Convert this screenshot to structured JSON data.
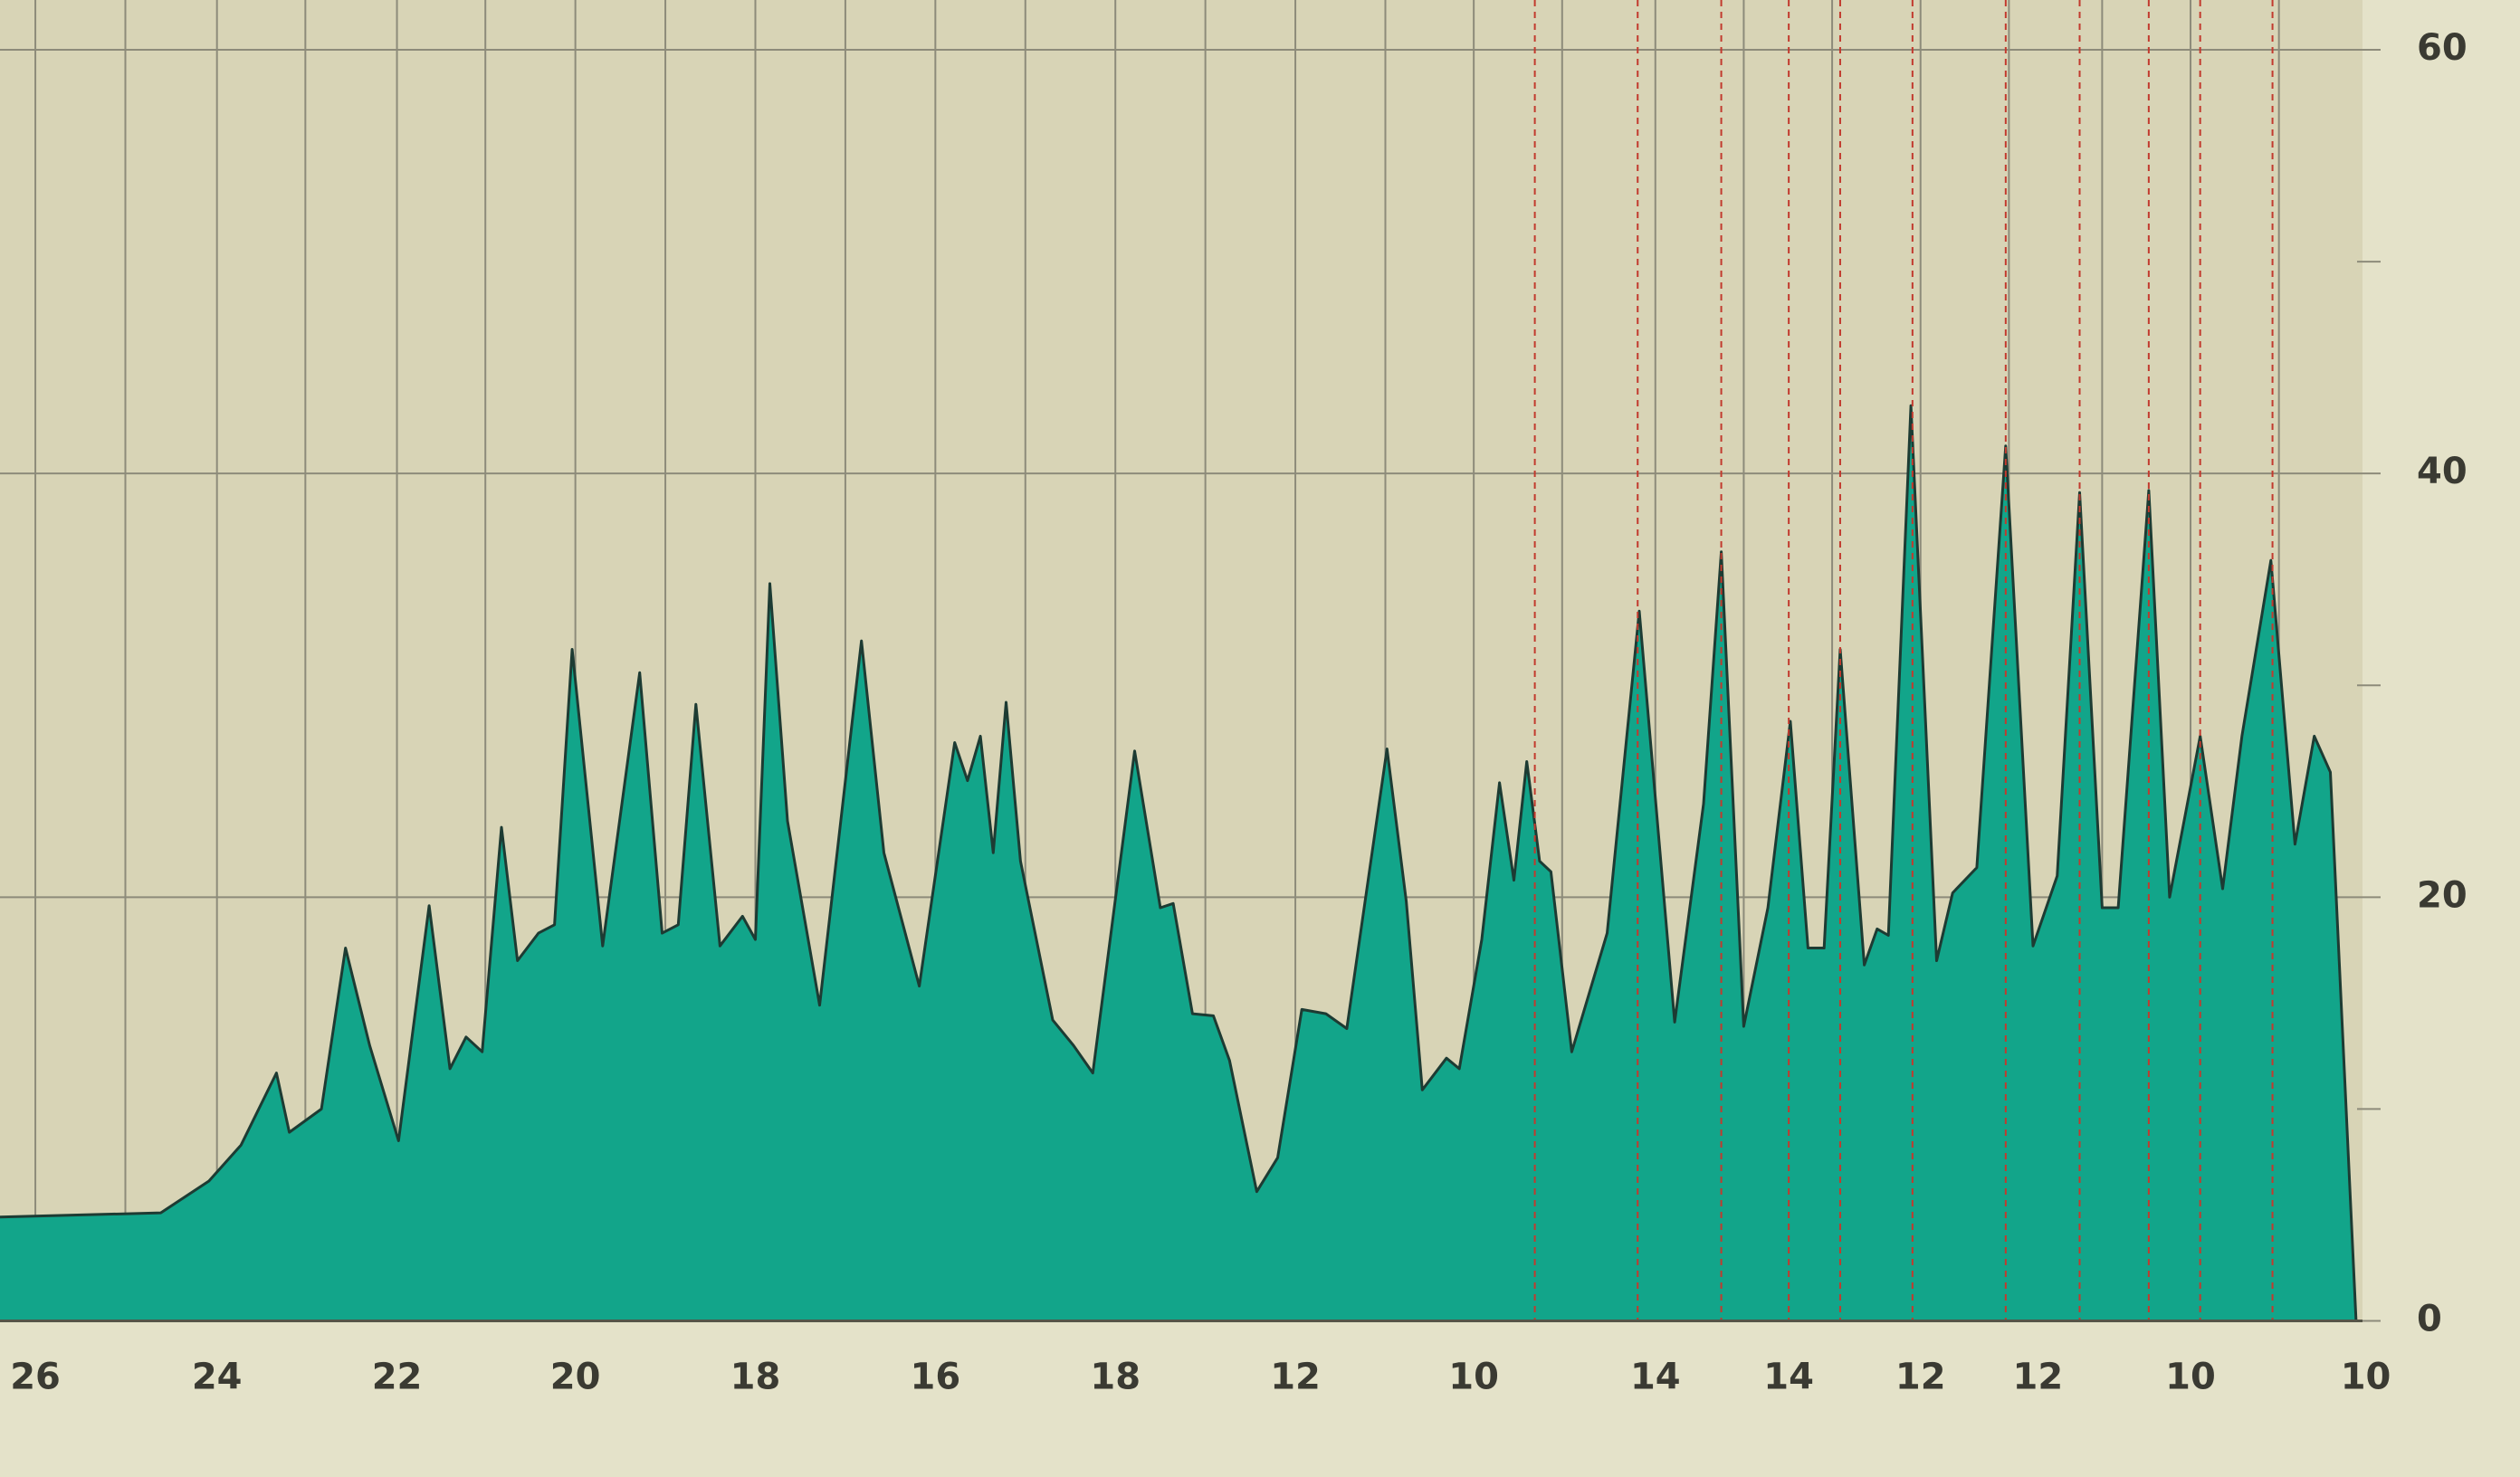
{
  "chart_data": {
    "type": "area",
    "color": "#12a58a",
    "line_color": "#1d3b33",
    "x": [
      0,
      100,
      130,
      150,
      172,
      180,
      200,
      215,
      230,
      248,
      267,
      280,
      290,
      300,
      312,
      322,
      335,
      345,
      356,
      375,
      398,
      412,
      422,
      433,
      448,
      462,
      470,
      479,
      490,
      510,
      536,
      550,
      572,
      594,
      602,
      610,
      618,
      626,
      635,
      655,
      668,
      680,
      706,
      722,
      730,
      742,
      755,
      765,
      782,
      795,
      810,
      825,
      838,
      863,
      875,
      885,
      900,
      908,
      922,
      933,
      942,
      950,
      958,
      965,
      978,
      1000,
      1020,
      1042,
      1060,
      1071,
      1085,
      1100,
      1114,
      1125,
      1135,
      1145,
      1160,
      1168,
      1175,
      1189,
      1205,
      1215,
      1230,
      1248,
      1265,
      1280,
      1294,
      1308,
      1318,
      1337,
      1350,
      1369,
      1383,
      1395,
      1413,
      1428,
      1440,
      1450,
      1466,
      1470
    ],
    "values": [
      4.9,
      5.1,
      6.6,
      8.3,
      11.7,
      8.9,
      10,
      17.6,
      13,
      8.5,
      19.6,
      11.9,
      13.4,
      12.7,
      23.3,
      17,
      18.3,
      18.7,
      31.7,
      17.7,
      30.6,
      18.3,
      18.7,
      29.1,
      17.7,
      19.1,
      18,
      34.8,
      23.6,
      14.9,
      32.1,
      22.1,
      15.8,
      27.3,
      25.5,
      27.6,
      22.1,
      29.2,
      21.7,
      14.2,
      13,
      11.7,
      26.9,
      19.5,
      19.7,
      14.5,
      14.4,
      12.3,
      6.1,
      7.7,
      14.7,
      14.5,
      13.8,
      27,
      19.8,
      10.9,
      12.4,
      11.9,
      18,
      25.4,
      20.8,
      26.4,
      21.7,
      21.2,
      12.7,
      18.3,
      33.5,
      14.1,
      24.4,
      36.3,
      13.9,
      19.5,
      28.3,
      17.6,
      17.6,
      31.7,
      16.8,
      18.5,
      18.2,
      43.2,
      17,
      20.2,
      21.4,
      41.3,
      17.7,
      21,
      39.1,
      19.5,
      19.5,
      39.2,
      20,
      27.6,
      20.4,
      27.6,
      35.9,
      22.5,
      27.6,
      25.9,
      0,
      0
    ],
    "xlim": [
      0,
      1470
    ],
    "xticks": [
      {
        "value": 22,
        "label": "26"
      },
      {
        "value": 135,
        "label": "24"
      },
      {
        "value": 247,
        "label": "22"
      },
      {
        "value": 358,
        "label": "20"
      },
      {
        "value": 470,
        "label": "18"
      },
      {
        "value": 582,
        "label": "16"
      },
      {
        "value": 694,
        "label": "18"
      },
      {
        "value": 806,
        "label": "12"
      },
      {
        "value": 917,
        "label": "10"
      },
      {
        "value": 1030,
        "label": "14"
      },
      {
        "value": 1113,
        "label": "14"
      },
      {
        "value": 1195,
        "label": "12"
      },
      {
        "value": 1268,
        "label": "12"
      },
      {
        "value": 1363,
        "label": "10"
      },
      {
        "value": 1472,
        "label": "10"
      }
    ],
    "xgrid": [
      22,
      78,
      135,
      190,
      247,
      302,
      358,
      414,
      470,
      526,
      582,
      638,
      694,
      750,
      806,
      862,
      917,
      972,
      1030,
      1085,
      1140,
      1195,
      1250,
      1308,
      1363,
      1418
    ],
    "marker_lines": [
      955,
      1019,
      1071,
      1113,
      1145,
      1190,
      1248,
      1294,
      1337,
      1369,
      1414
    ],
    "marker_color": "#c23a2e",
    "ylim": [
      0,
      60
    ],
    "yticks": [
      0,
      20,
      40,
      60
    ],
    "yminor": [
      10,
      30,
      50
    ],
    "grid": true,
    "y_axis_side": "right"
  }
}
